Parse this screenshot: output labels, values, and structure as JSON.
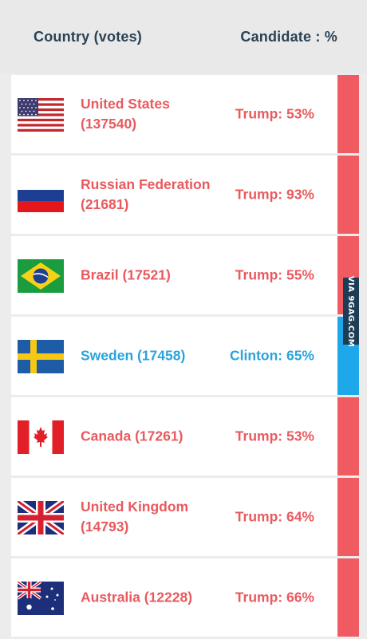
{
  "header": {
    "left_label": "Country (votes)",
    "right_label": "Candidate : %"
  },
  "colors": {
    "trump": "#e9595e",
    "clinton": "#2ba3da",
    "stripe_trump": "#ef5b60",
    "stripe_clinton": "#1ea8e9",
    "header_text": "#2a4254"
  },
  "rows": [
    {
      "flag": "us-flag-icon",
      "country": "United States (137540)",
      "candidate": "Trump: 53%",
      "party": "trump"
    },
    {
      "flag": "russia-flag-icon",
      "country": "Russian Federation (21681)",
      "candidate": "Trump: 93%",
      "party": "trump"
    },
    {
      "flag": "brazil-flag-icon",
      "country": "Brazil (17521)",
      "candidate": "Trump: 55%",
      "party": "trump"
    },
    {
      "flag": "sweden-flag-icon",
      "country": "Sweden (17458)",
      "candidate": "Clinton: 65%",
      "party": "clinton"
    },
    {
      "flag": "canada-flag-icon",
      "country": "Canada (17261)",
      "candidate": "Trump: 53%",
      "party": "trump"
    },
    {
      "flag": "uk-flag-icon",
      "country": "United Kingdom (14793)",
      "candidate": "Trump: 64%",
      "party": "trump"
    },
    {
      "flag": "australia-flag-icon",
      "country": "Australia (12228)",
      "candidate": "Trump: 66%",
      "party": "trump"
    }
  ],
  "watermark": "VIA 9GAG.COM"
}
